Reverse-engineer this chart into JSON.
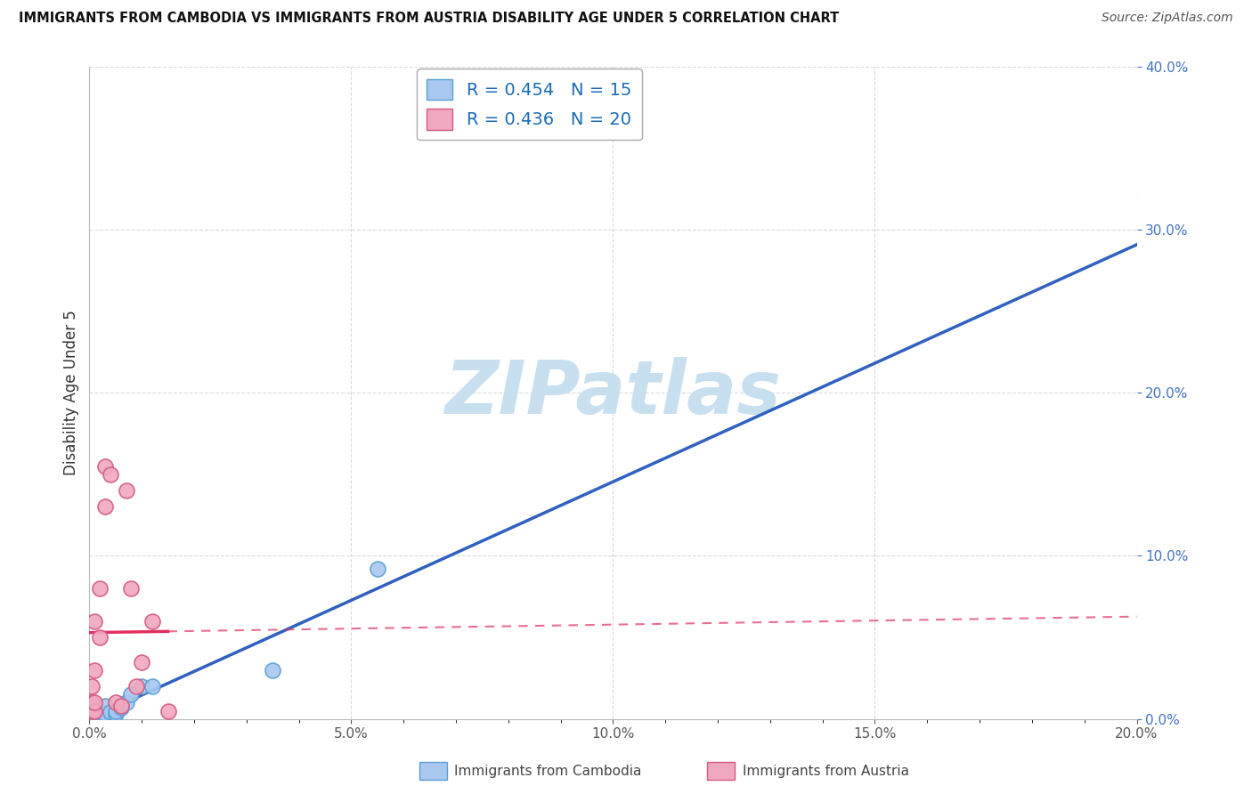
{
  "title": "IMMIGRANTS FROM CAMBODIA VS IMMIGRANTS FROM AUSTRIA DISABILITY AGE UNDER 5 CORRELATION CHART",
  "source": "Source: ZipAtlas.com",
  "ylabel": "Disability Age Under 5",
  "xlim": [
    0.0,
    0.2
  ],
  "ylim": [
    0.0,
    0.4
  ],
  "xticks": [
    0.0,
    0.05,
    0.1,
    0.15,
    0.2
  ],
  "yticks": [
    0.0,
    0.1,
    0.2,
    0.3,
    0.4
  ],
  "cambodia_color": "#a8c8f0",
  "cambodia_edge": "#5a9fd4",
  "austria_color": "#f0a8c0",
  "austria_edge": "#d45a80",
  "cambodia_line_color": "#3060c0",
  "austria_line_color": "#e03060",
  "cambodia_R": 0.454,
  "cambodia_N": 15,
  "austria_R": 0.436,
  "austria_N": 20,
  "cambodia_scatter_x": [
    0.001,
    0.001,
    0.002,
    0.003,
    0.003,
    0.004,
    0.005,
    0.005,
    0.006,
    0.007,
    0.008,
    0.01,
    0.012,
    0.035,
    0.055
  ],
  "cambodia_scatter_y": [
    0.005,
    0.003,
    0.004,
    0.003,
    0.008,
    0.004,
    0.003,
    0.005,
    0.007,
    0.01,
    0.015,
    0.02,
    0.02,
    0.03,
    0.092
  ],
  "austria_scatter_x": [
    0.0005,
    0.0005,
    0.0005,
    0.001,
    0.001,
    0.001,
    0.001,
    0.002,
    0.002,
    0.003,
    0.003,
    0.004,
    0.005,
    0.006,
    0.007,
    0.008,
    0.009,
    0.01,
    0.012,
    0.015
  ],
  "austria_scatter_y": [
    0.005,
    0.01,
    0.02,
    0.005,
    0.01,
    0.03,
    0.06,
    0.05,
    0.08,
    0.13,
    0.155,
    0.15,
    0.01,
    0.008,
    0.14,
    0.08,
    0.02,
    0.035,
    0.06,
    0.005
  ],
  "watermark_text": "ZIPatlas",
  "watermark_color": "#c8dff0",
  "background_color": "#ffffff",
  "grid_color": "#cccccc",
  "legend_box_color": "#ffffff",
  "legend_edge_color": "#aaaaaa",
  "legend_text_color": "#1a6bb5"
}
